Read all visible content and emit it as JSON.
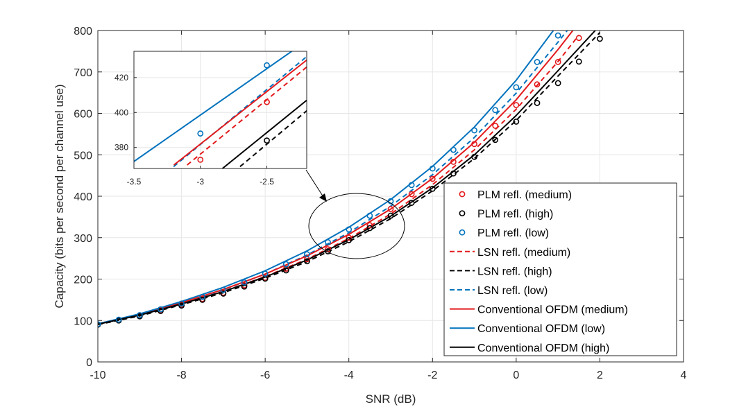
{
  "chart_data": {
    "type": "line",
    "title": "",
    "xlabel": "SNR (dB)",
    "ylabel": "Capacity (bits per second per channel use)",
    "xlim": [
      -10,
      4
    ],
    "ylim": [
      0,
      800
    ],
    "xticks": [
      -10,
      -8,
      -6,
      -4,
      -2,
      0,
      2,
      4
    ],
    "yticks": [
      0,
      100,
      200,
      300,
      400,
      500,
      600,
      700,
      800
    ],
    "xtick_labels": [
      "-10",
      "-8",
      "-6",
      "-4",
      "-2",
      "0",
      "2",
      "4"
    ],
    "ytick_labels": [
      "0",
      "100",
      "200",
      "300",
      "400",
      "500",
      "600",
      "700",
      "800"
    ],
    "grid": true,
    "legend_position": "right",
    "series": [
      {
        "name": "PLM refl. (medium)",
        "style": "marker",
        "color": "#e31a1c",
        "x": [
          -10,
          -9.5,
          -9,
          -8.5,
          -8,
          -7.5,
          -7,
          -6.5,
          -6,
          -5.5,
          -5,
          -4.5,
          -4,
          -3.5,
          -3,
          -2.5,
          -2,
          -1.5,
          -1,
          -0.5,
          0,
          0.5,
          1,
          1.5
        ],
        "values": [
          90,
          101,
          111,
          125,
          138,
          152,
          167,
          185,
          203,
          225,
          248,
          272,
          300,
          330,
          369,
          405,
          442,
          483,
          526,
          570,
          620,
          670,
          724,
          782
        ]
      },
      {
        "name": "PLM refl. (high)",
        "style": "marker",
        "color": "#000000",
        "x": [
          -10,
          -9.5,
          -9,
          -8.5,
          -8,
          -7.5,
          -7,
          -6.5,
          -6,
          -5.5,
          -5,
          -4.5,
          -4,
          -3.5,
          -3,
          -2.5,
          -2,
          -1.5,
          -1,
          -0.5,
          0,
          0.5,
          1,
          1.5,
          2
        ],
        "values": [
          90,
          100,
          110,
          123,
          136,
          150,
          165,
          182,
          201,
          221,
          243,
          267,
          294,
          323,
          353,
          384,
          418,
          455,
          495,
          536,
          580,
          625,
          673,
          725,
          780
        ]
      },
      {
        "name": "PLM refl. (low)",
        "style": "marker",
        "color": "#0072bd",
        "x": [
          -10,
          -9.5,
          -9,
          -8.5,
          -8,
          -7.5,
          -7,
          -6.5,
          -6,
          -5.5,
          -5,
          -4.5,
          -4,
          -3.5,
          -3,
          -2.5,
          -2,
          -1.5,
          -1,
          -0.5,
          0,
          0.5,
          1
        ],
        "values": [
          91,
          102,
          113,
          127,
          141,
          157,
          174,
          192,
          213,
          236,
          260,
          289,
          320,
          353,
          388,
          427,
          467,
          512,
          559,
          608,
          663,
          724,
          788
        ]
      },
      {
        "name": "LSN refl. (medium)",
        "style": "dashed",
        "color": "#e31a1c",
        "x": [
          -10,
          -9,
          -8,
          -7,
          -6,
          -5,
          -4,
          -3,
          -2,
          -1,
          0,
          1,
          1.5
        ],
        "values": [
          91,
          113,
          140,
          170,
          206,
          248,
          298,
          357,
          428,
          512,
          610,
          725,
          789
        ]
      },
      {
        "name": "LSN refl. (high)",
        "style": "dashed",
        "color": "#000000",
        "x": [
          -10,
          -9,
          -8,
          -7,
          -6,
          -5,
          -4,
          -3,
          -2,
          -1,
          0,
          1,
          2
        ],
        "values": [
          90,
          111,
          138,
          167,
          202,
          242,
          290,
          346,
          413,
          491,
          583,
          690,
          795
        ]
      },
      {
        "name": "LSN refl. (low)",
        "style": "dashed",
        "color": "#0072bd",
        "x": [
          -10,
          -9,
          -8,
          -7,
          -6,
          -5,
          -4,
          -3,
          -2,
          -1,
          0,
          1,
          1.4
        ],
        "values": [
          91,
          114,
          142,
          174,
          212,
          258,
          312,
          376,
          452,
          542,
          649,
          772,
          823
        ]
      },
      {
        "name": "Conventional OFDM (medium)",
        "style": "solid",
        "color": "#e31a1c",
        "x": [
          -10,
          -9,
          -8,
          -7,
          -6,
          -5,
          -4,
          -3,
          -2,
          -1,
          0,
          1,
          1.6
        ],
        "values": [
          92,
          115,
          143,
          175,
          212,
          256,
          308,
          369,
          443,
          530,
          633,
          754,
          832
        ]
      },
      {
        "name": "Conventional OFDM (low)",
        "style": "solid",
        "color": "#0072bd",
        "x": [
          -10,
          -9,
          -8,
          -7,
          -6,
          -5,
          -4,
          -3,
          -2,
          -1,
          0,
          1,
          1.2
        ],
        "values": [
          92,
          116,
          146,
          180,
          220,
          268,
          325,
          392,
          472,
          567,
          680,
          815,
          845
        ]
      },
      {
        "name": "Conventional OFDM (high)",
        "style": "solid",
        "color": "#000000",
        "x": [
          -10,
          -9,
          -8,
          -7,
          -6,
          -5,
          -4,
          -3,
          -2,
          -1,
          0,
          1,
          2
        ],
        "values": [
          91,
          113,
          140,
          170,
          205,
          246,
          295,
          352,
          420,
          500,
          595,
          703,
          812
        ]
      }
    ],
    "inset": {
      "xlim": [
        -3.5,
        -2.2
      ],
      "ylim": [
        368,
        435
      ],
      "xticks": [
        -3.5,
        -3,
        -2.5
      ],
      "yticks": [
        380,
        400,
        420
      ],
      "xtick_labels": [
        "-3.5",
        "-3",
        "-2.5"
      ],
      "ytick_labels": [
        "380",
        "400",
        "420"
      ],
      "series": [
        {
          "style": "solid",
          "color": "#0072bd",
          "x": [
            -3.5,
            -2.2
          ],
          "values": [
            372,
            441
          ]
        },
        {
          "style": "dashed",
          "color": "#0072bd",
          "x": [
            -3.25,
            -2.2
          ],
          "values": [
            366,
            432
          ]
        },
        {
          "style": "solid",
          "color": "#e31a1c",
          "x": [
            -3.2,
            -2.2
          ],
          "values": [
            370,
            430
          ]
        },
        {
          "style": "dashed",
          "color": "#e31a1c",
          "x": [
            -3.1,
            -2.2
          ],
          "values": [
            370,
            426
          ]
        },
        {
          "style": "solid",
          "color": "#000000",
          "x": [
            -2.85,
            -2.2
          ],
          "values": [
            367,
            407
          ]
        },
        {
          "style": "dashed",
          "color": "#000000",
          "x": [
            -2.75,
            -2.2
          ],
          "values": [
            366,
            401
          ]
        },
        {
          "style": "marker",
          "color": "#0072bd",
          "x": [
            -3,
            -2.5
          ],
          "values": [
            388,
            427
          ]
        },
        {
          "style": "marker",
          "color": "#e31a1c",
          "x": [
            -3,
            -2.5
          ],
          "values": [
            373,
            406
          ]
        },
        {
          "style": "marker",
          "color": "#000000",
          "x": [
            -2.5
          ],
          "values": [
            384
          ]
        }
      ]
    }
  }
}
